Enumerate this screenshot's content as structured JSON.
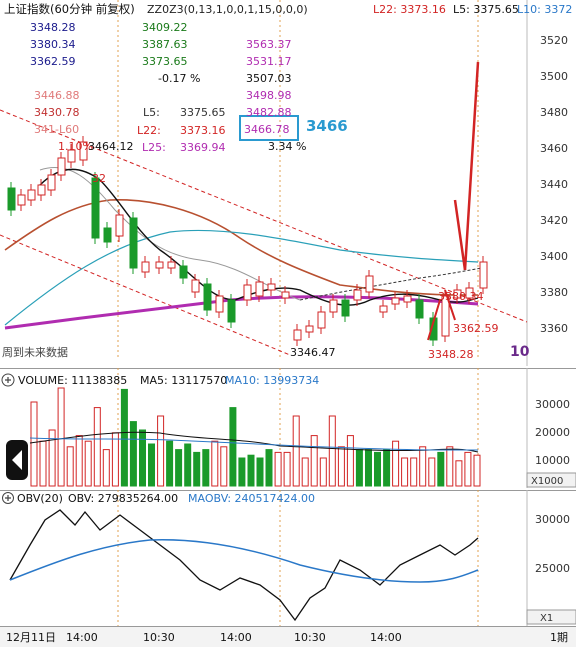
{
  "main": {
    "title": "上证指数(60分钟 前复权)",
    "indicator_label": "ZZ0Z3(0,13,1,0,0,1,15,0,0,0)",
    "l22_top": "L22: 3373.16",
    "l5_top": "L5: 3375.65",
    "l10_top": "L10: 3372",
    "col1": [
      "3348.28",
      "3380.34",
      "3362.59"
    ],
    "col2": [
      "3409.22",
      "3387.63",
      "3373.65"
    ],
    "col3": [
      "3563.37",
      "3531.17",
      "3507.03",
      "3498.98",
      "3482.88",
      "3466.78",
      "3.34  %"
    ],
    "pct": "-0.17 %",
    "faded": [
      "3446.88",
      "3430.78",
      "341-L60"
    ],
    "l5": "L5:",
    "l5_val": "3375.65",
    "l22": "L22:",
    "l22_val": "3373.16",
    "l25": "L25:",
    "l25_val": "3369.94",
    "pct_left": "1.10%",
    "high_label": "3464.12",
    "red_32": "32",
    "highlight": "3466",
    "low_label": "3346.47",
    "low2_label": "3348.28",
    "mid_label": "3362.59",
    "right_label": "3380.34",
    "ten": "10",
    "future": "周到未来数据",
    "yticks": [
      "3520",
      "3500",
      "3480",
      "3460",
      "3440",
      "3420",
      "3400",
      "3380",
      "3360"
    ]
  },
  "volume": {
    "label": "VOLUME: 11138385",
    "ma5": "MA5: 13117570",
    "ma10": "MA10: 13993734",
    "yticks": [
      "30000",
      "20000",
      "10000"
    ],
    "unit": "X1000",
    "bars": [
      {
        "v": 3.0,
        "c": "r"
      },
      {
        "v": 1.6,
        "c": "r"
      },
      {
        "v": 2.0,
        "c": "r"
      },
      {
        "v": 3.5,
        "c": "r"
      },
      {
        "v": 1.4,
        "c": "r"
      },
      {
        "v": 1.8,
        "c": "r"
      },
      {
        "v": 1.6,
        "c": "r"
      },
      {
        "v": 2.8,
        "c": "r"
      },
      {
        "v": 1.3,
        "c": "r"
      },
      {
        "v": 1.9,
        "c": "r"
      },
      {
        "v": 3.45,
        "c": "g"
      },
      {
        "v": 2.3,
        "c": "g"
      },
      {
        "v": 2.0,
        "c": "g"
      },
      {
        "v": 1.5,
        "c": "g"
      },
      {
        "v": 2.5,
        "c": "r"
      },
      {
        "v": 1.6,
        "c": "g"
      },
      {
        "v": 1.3,
        "c": "g"
      },
      {
        "v": 1.5,
        "c": "g"
      },
      {
        "v": 1.2,
        "c": "g"
      },
      {
        "v": 1.3,
        "c": "g"
      },
      {
        "v": 1.6,
        "c": "r"
      },
      {
        "v": 1.4,
        "c": "r"
      },
      {
        "v": 2.8,
        "c": "g"
      },
      {
        "v": 1.0,
        "c": "g"
      },
      {
        "v": 1.1,
        "c": "g"
      },
      {
        "v": 1.0,
        "c": "g"
      },
      {
        "v": 1.3,
        "c": "g"
      },
      {
        "v": 1.2,
        "c": "r"
      },
      {
        "v": 1.2,
        "c": "r"
      },
      {
        "v": 2.5,
        "c": "r"
      },
      {
        "v": 1.0,
        "c": "r"
      },
      {
        "v": 1.8,
        "c": "r"
      },
      {
        "v": 1.0,
        "c": "r"
      },
      {
        "v": 2.5,
        "c": "r"
      },
      {
        "v": 1.4,
        "c": "r"
      },
      {
        "v": 1.8,
        "c": "r"
      },
      {
        "v": 1.3,
        "c": "g"
      },
      {
        "v": 1.3,
        "c": "g"
      },
      {
        "v": 1.2,
        "c": "g"
      },
      {
        "v": 1.3,
        "c": "g"
      },
      {
        "v": 1.6,
        "c": "r"
      },
      {
        "v": 1.0,
        "c": "r"
      },
      {
        "v": 1.0,
        "c": "r"
      },
      {
        "v": 1.4,
        "c": "r"
      },
      {
        "v": 1.0,
        "c": "r"
      },
      {
        "v": 1.2,
        "c": "g"
      },
      {
        "v": 1.4,
        "c": "r"
      },
      {
        "v": 0.9,
        "c": "r"
      },
      {
        "v": 1.2,
        "c": "r"
      },
      {
        "v": 1.1,
        "c": "r"
      }
    ]
  },
  "obv": {
    "label": "OBV(20)",
    "obv": "OBV: 279835264.00",
    "maobv": "MAOBV: 240517424.00",
    "yticks": [
      "30000",
      "25000"
    ],
    "unit": "X1"
  },
  "xaxis": {
    "labels": [
      "12月11日",
      "14:00",
      "10:30",
      "14:00",
      "10:30",
      "14:00"
    ],
    "tail": "1期"
  },
  "colors": {
    "red": "#d22424",
    "green": "#1a9a2a",
    "purple": "#b02cb0",
    "blue": "#2a78c8"
  }
}
